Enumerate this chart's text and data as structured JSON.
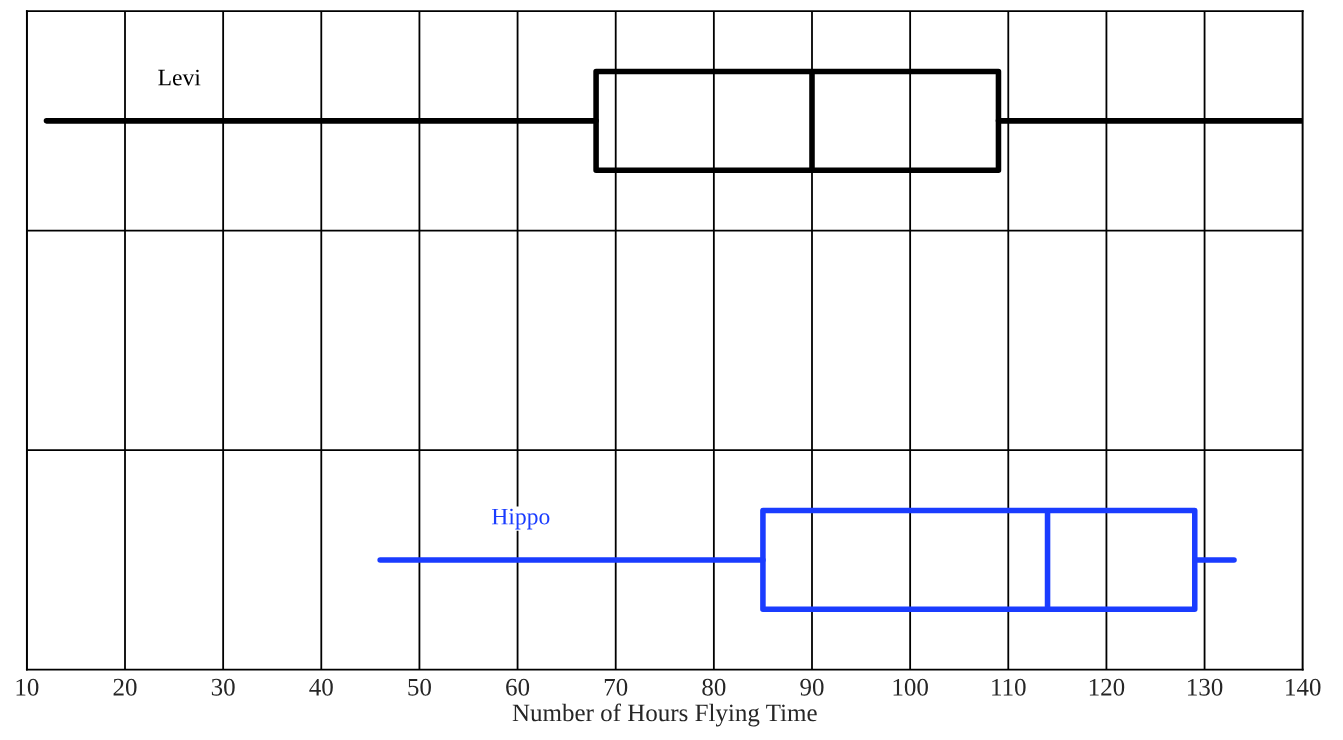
{
  "chart_data": {
    "type": "box",
    "orientation": "horizontal",
    "xlabel": "Number of Hours Flying Time",
    "categories": [
      null,
      null,
      null
    ],
    "series": [
      {
        "name": "Levi",
        "color": "#000000",
        "boxes": [
          {
            "low": 12,
            "q1": 68,
            "median": 90,
            "q3": 109,
            "high": 140
          },
          null,
          null
        ]
      },
      {
        "name": "Hippo",
        "color": "#1a3cff",
        "boxes": [
          null,
          null,
          {
            "low": 46,
            "q1": 85,
            "median": 114,
            "q3": 129,
            "high": 133
          }
        ]
      }
    ],
    "xlim": [
      10,
      140
    ],
    "xticks": [
      10,
      20,
      30,
      40,
      50,
      60,
      70,
      80,
      90,
      100,
      110,
      120,
      130,
      140
    ],
    "grid": true,
    "tick_labels": "x"
  }
}
